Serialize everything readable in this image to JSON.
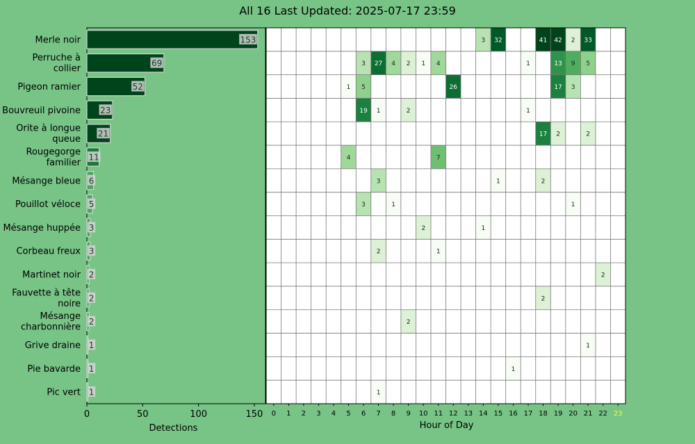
{
  "title": "All 16 Last Updated: 2025-07-17 23:59",
  "colors": {
    "background": "#77c486",
    "highlight_hour": "#eeff44",
    "bar_dark": "#00441b",
    "bar_mid": "#1a7a3a",
    "bar_light": "#4fa364"
  },
  "chart_data": [
    {
      "type": "bar",
      "orientation": "horizontal",
      "categories": [
        "Merle noir",
        "Perruche à collier",
        "Pigeon ramier",
        "Bouvreuil pivoine",
        "Orite à longue queue",
        "Rougegorge familier",
        "Mésange bleue",
        "Pouillot véloce",
        "Mésange huppée",
        "Corbeau freux",
        "Martinet noir",
        "Fauvette à tête noire",
        "Mésange charbonnière",
        "Grive draine",
        "Pie bavarde",
        "Pic vert"
      ],
      "category_lines": [
        [
          "Merle noir"
        ],
        [
          "Perruche à",
          "collier"
        ],
        [
          "Pigeon ramier"
        ],
        [
          "Bouvreuil pivoine"
        ],
        [
          "Orite à longue",
          "queue"
        ],
        [
          "Rougegorge",
          "familier"
        ],
        [
          "Mésange bleue"
        ],
        [
          "Pouillot véloce"
        ],
        [
          "Mésange huppée"
        ],
        [
          "Corbeau freux"
        ],
        [
          "Martinet noir"
        ],
        [
          "Fauvette à tête",
          "noire"
        ],
        [
          "Mésange",
          "charbonnière"
        ],
        [
          "Grive draine"
        ],
        [
          "Pie bavarde"
        ],
        [
          "Pic vert"
        ]
      ],
      "values": [
        153,
        69,
        52,
        23,
        21,
        11,
        6,
        5,
        3,
        3,
        2,
        2,
        2,
        1,
        1,
        1
      ],
      "value_labels": [
        "153",
        "69",
        "52",
        "23",
        "21",
        "11",
        "6",
        "5",
        "3",
        "3",
        "2",
        "2",
        "2",
        "1",
        "1",
        "1"
      ],
      "xlabel": "Detections",
      "xlim": [
        0,
        160
      ],
      "xticks": [
        0,
        50,
        100,
        150
      ],
      "xtick_labels": [
        "0",
        "50",
        "100",
        "150"
      ]
    },
    {
      "type": "heatmap",
      "xlabel": "Hour of Day",
      "x": [
        0,
        1,
        2,
        3,
        4,
        5,
        6,
        7,
        8,
        9,
        10,
        11,
        12,
        13,
        14,
        15,
        16,
        17,
        18,
        19,
        20,
        21,
        22,
        23
      ],
      "xtick_labels": [
        "0",
        "1",
        "2",
        "3",
        "4",
        "5",
        "6",
        "7",
        "8",
        "9",
        "10",
        "11",
        "12",
        "13",
        "14",
        "15",
        "16",
        "17",
        "18",
        "19",
        "20",
        "21",
        "22",
        "23"
      ],
      "highlight_hour": 23,
      "cells": [
        [
          0,
          14,
          3
        ],
        [
          0,
          15,
          32
        ],
        [
          0,
          18,
          41
        ],
        [
          0,
          19,
          42
        ],
        [
          0,
          20,
          2
        ],
        [
          0,
          21,
          33
        ],
        [
          1,
          6,
          3
        ],
        [
          1,
          7,
          27
        ],
        [
          1,
          8,
          4
        ],
        [
          1,
          9,
          2
        ],
        [
          1,
          10,
          1
        ],
        [
          1,
          11,
          4
        ],
        [
          1,
          17,
          1
        ],
        [
          1,
          19,
          13
        ],
        [
          1,
          20,
          9
        ],
        [
          1,
          21,
          5
        ],
        [
          2,
          5,
          1
        ],
        [
          2,
          6,
          5
        ],
        [
          2,
          12,
          26
        ],
        [
          2,
          19,
          17
        ],
        [
          2,
          20,
          3
        ],
        [
          3,
          6,
          19
        ],
        [
          3,
          7,
          1
        ],
        [
          3,
          9,
          2
        ],
        [
          3,
          17,
          1
        ],
        [
          4,
          18,
          17
        ],
        [
          4,
          19,
          2
        ],
        [
          4,
          21,
          2
        ],
        [
          5,
          5,
          4
        ],
        [
          5,
          11,
          7
        ],
        [
          6,
          7,
          3
        ],
        [
          6,
          15,
          1
        ],
        [
          6,
          18,
          2
        ],
        [
          7,
          6,
          3
        ],
        [
          7,
          8,
          1
        ],
        [
          7,
          20,
          1
        ],
        [
          8,
          10,
          2
        ],
        [
          8,
          14,
          1
        ],
        [
          9,
          7,
          2
        ],
        [
          9,
          11,
          1
        ],
        [
          10,
          22,
          2
        ],
        [
          11,
          18,
          2
        ],
        [
          12,
          9,
          2
        ],
        [
          13,
          21,
          1
        ],
        [
          14,
          16,
          1
        ],
        [
          15,
          7,
          1
        ]
      ]
    }
  ]
}
